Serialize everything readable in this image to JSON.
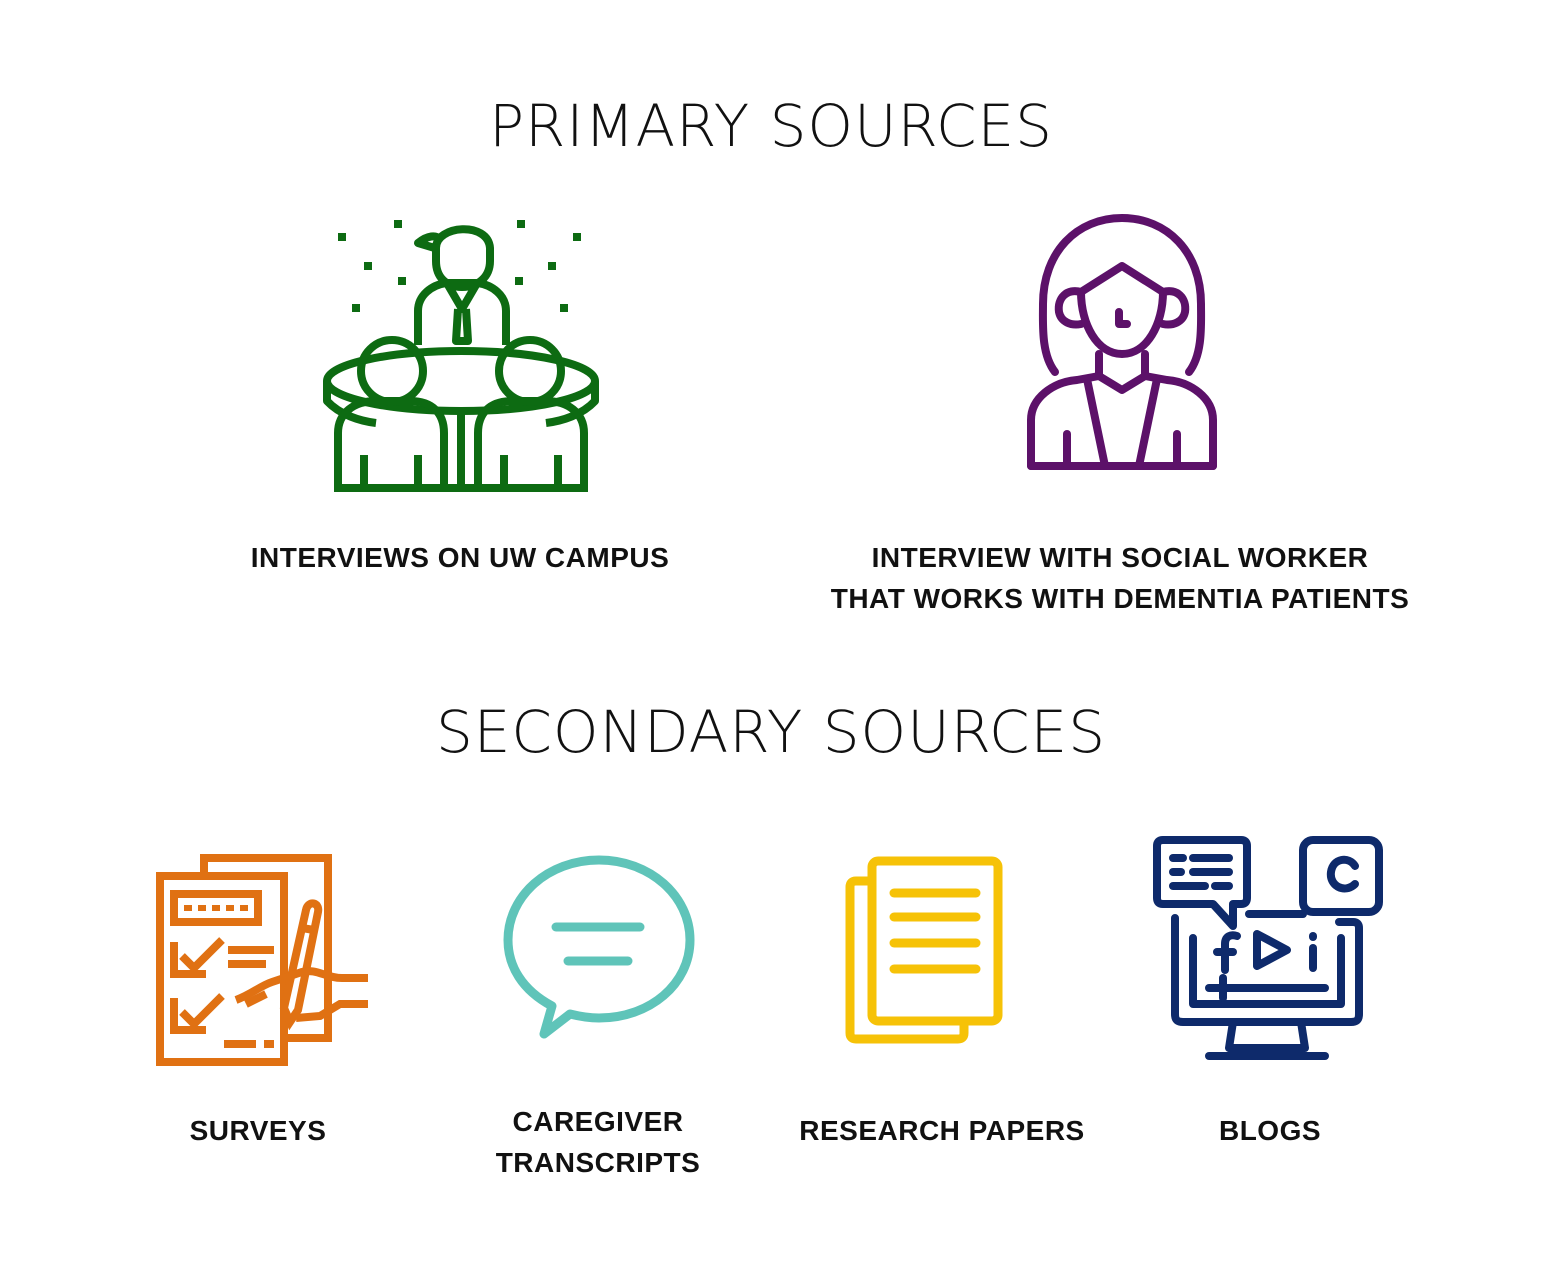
{
  "primary": {
    "heading": "PRIMARY SOURCES",
    "items": [
      {
        "icon": "meeting-group-icon",
        "color": "#0d6b12",
        "label_lines": [
          "INTERVIEWS ON UW CAMPUS"
        ]
      },
      {
        "icon": "social-worker-icon",
        "color": "#5c1169",
        "label_lines": [
          "INTERVIEW WITH SOCIAL WORKER",
          "THAT WORKS WITH DEMENTIA PATIENTS"
        ]
      }
    ]
  },
  "secondary": {
    "heading": "SECONDARY SOURCES",
    "items": [
      {
        "icon": "survey-icon",
        "color": "#e07113",
        "label_lines": [
          "SURVEYS"
        ]
      },
      {
        "icon": "chat-bubble-icon",
        "color": "#5fc4b9",
        "label_lines": [
          "CAREGIVER",
          "TRANSCRIPTS"
        ]
      },
      {
        "icon": "documents-icon",
        "color": "#f6c207",
        "label_lines": [
          "RESEARCH PAPERS"
        ]
      },
      {
        "icon": "media-monitor-icon",
        "color": "#0e2a6b",
        "label_lines": [
          "BLOGS"
        ]
      }
    ]
  }
}
